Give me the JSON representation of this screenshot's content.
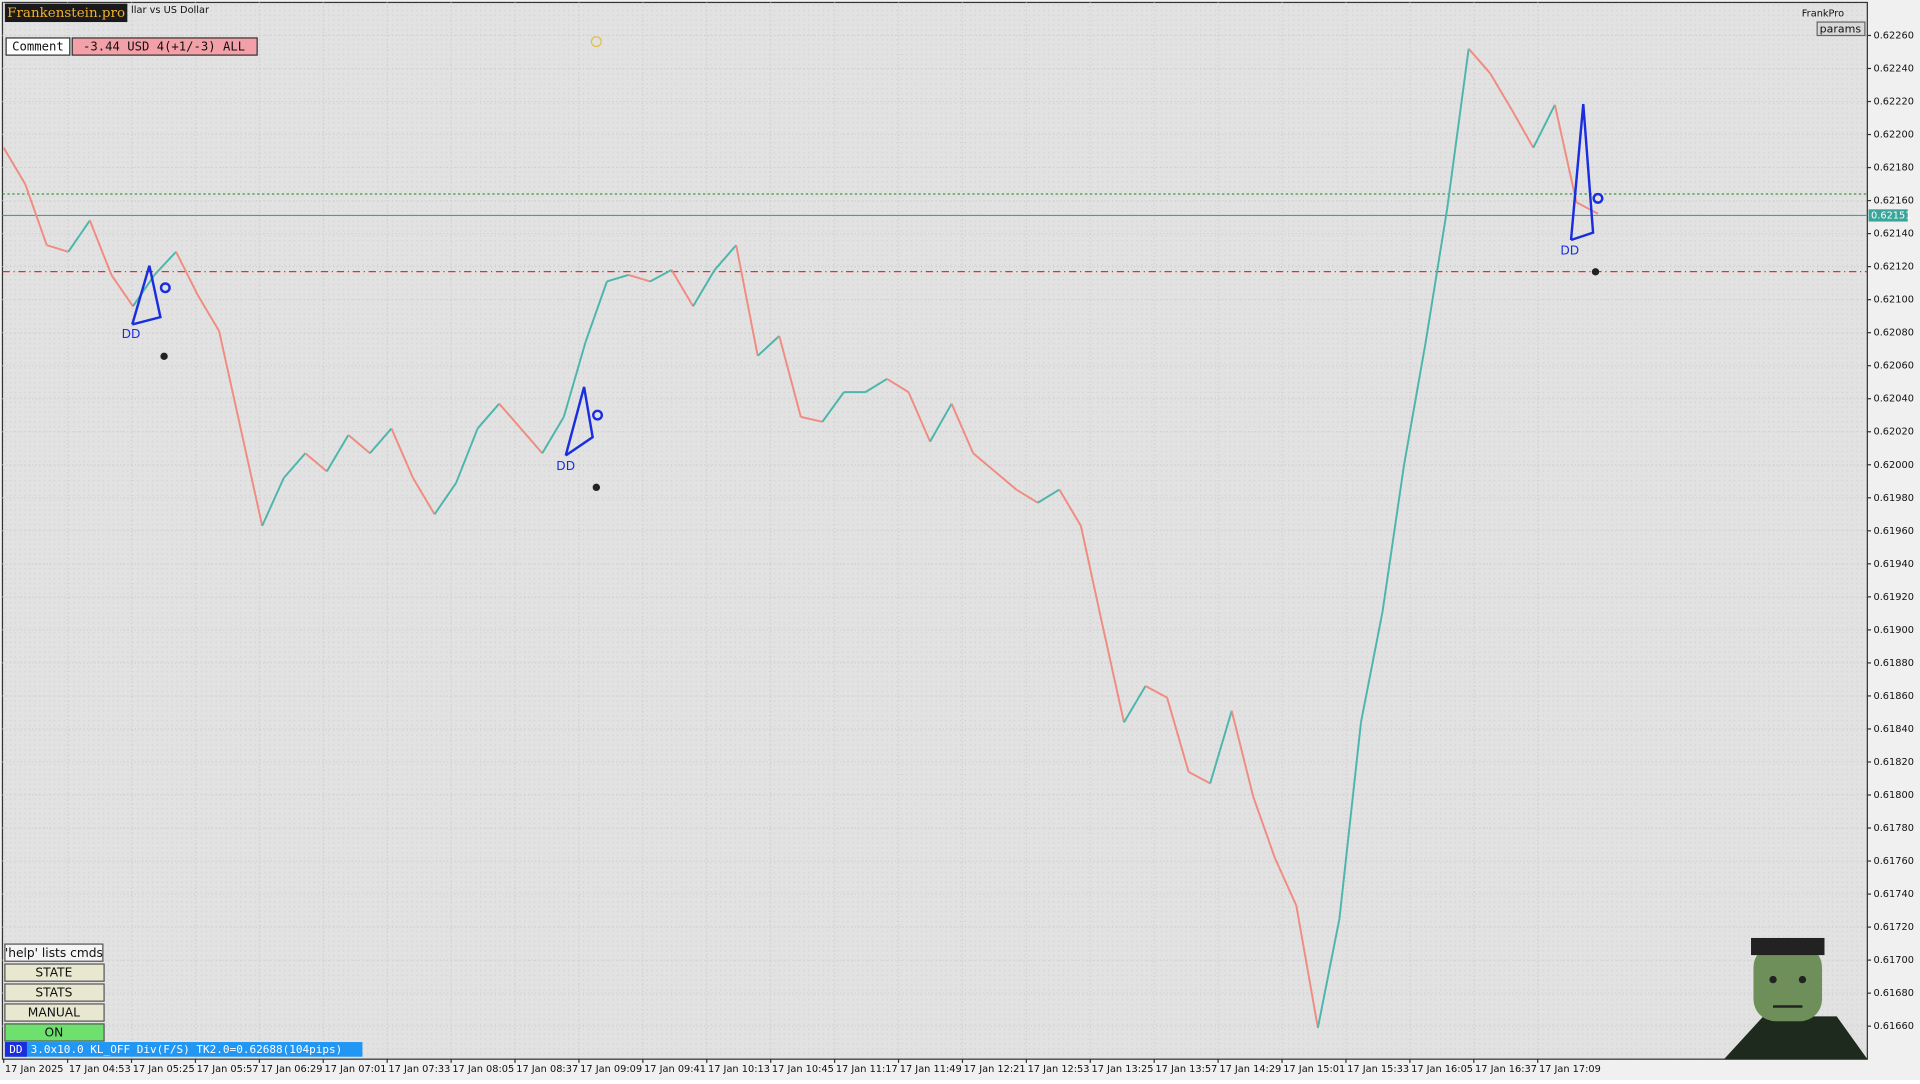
{
  "header": {
    "brand": "Frankenstein.pro",
    "symbol": "llar vs US Dollar",
    "comment_label": "Comment",
    "comment_value": "-3.44 USD 4(+1/-3) ALL",
    "account": "FrankPro",
    "params": "params"
  },
  "chart_data": {
    "type": "line",
    "up_color": "#4db6ac",
    "down_color": "#f08c80",
    "grid": true,
    "values": [
      0.62192,
      0.6217,
      0.62133,
      0.62129,
      0.62148,
      0.62115,
      0.62096,
      0.62115,
      0.62129,
      0.62103,
      0.62081,
      0.62022,
      0.61963,
      0.61992,
      0.62007,
      0.61996,
      0.62018,
      0.62007,
      0.62022,
      0.61992,
      0.6197,
      0.61989,
      0.62022,
      0.62037,
      0.62022,
      0.62007,
      0.62029,
      0.62074,
      0.62111,
      0.62115,
      0.62111,
      0.62118,
      0.62096,
      0.62118,
      0.62133,
      0.62066,
      0.62078,
      0.62029,
      0.62026,
      0.62044,
      0.62044,
      0.62052,
      0.62044,
      0.62014,
      0.62037,
      0.62007,
      0.61996,
      0.61985,
      0.61977,
      0.61985,
      0.61963,
      0.61903,
      0.61844,
      0.61866,
      0.61859,
      0.61814,
      0.61807,
      0.61851,
      0.61799,
      0.61762,
      0.61733,
      0.61659,
      0.61725,
      0.61844,
      0.61911,
      0.62,
      0.62074,
      0.62155,
      0.62252,
      0.62237,
      0.62215,
      0.62192,
      0.62218,
      0.62159,
      0.62152
    ],
    "ylim": [
      0.6164,
      0.6228
    ],
    "yticks": [
      {
        "value": 0.6226,
        "label": "0.62260"
      },
      {
        "value": 0.6224,
        "label": "0.62240"
      },
      {
        "value": 0.6222,
        "label": "0.62220"
      },
      {
        "value": 0.622,
        "label": "0.62200"
      },
      {
        "value": 0.6218,
        "label": "0.62180"
      },
      {
        "value": 0.6216,
        "label": "0.62160"
      },
      {
        "value": 0.6214,
        "label": "0.62140"
      },
      {
        "value": 0.6212,
        "label": "0.62120"
      },
      {
        "value": 0.621,
        "label": "0.62100"
      },
      {
        "value": 0.6208,
        "label": "0.62080"
      },
      {
        "value": 0.6206,
        "label": "0.62060"
      },
      {
        "value": 0.6204,
        "label": "0.62040"
      },
      {
        "value": 0.6202,
        "label": "0.62020"
      },
      {
        "value": 0.62,
        "label": "0.62000"
      },
      {
        "value": 0.6198,
        "label": "0.61980"
      },
      {
        "value": 0.6196,
        "label": "0.61960"
      },
      {
        "value": 0.6194,
        "label": "0.61940"
      },
      {
        "value": 0.6192,
        "label": "0.61920"
      },
      {
        "value": 0.619,
        "label": "0.61900"
      },
      {
        "value": 0.6188,
        "label": "0.61880"
      },
      {
        "value": 0.6186,
        "label": "0.61860"
      },
      {
        "value": 0.6184,
        "label": "0.61840"
      },
      {
        "value": 0.6182,
        "label": "0.61820"
      },
      {
        "value": 0.618,
        "label": "0.61800"
      },
      {
        "value": 0.6178,
        "label": "0.61780"
      },
      {
        "value": 0.6176,
        "label": "0.61760"
      },
      {
        "value": 0.6174,
        "label": "0.61740"
      },
      {
        "value": 0.6172,
        "label": "0.61720"
      },
      {
        "value": 0.617,
        "label": "0.61700"
      },
      {
        "value": 0.6168,
        "label": "0.61680"
      },
      {
        "value": 0.6166,
        "label": "0.61660"
      }
    ],
    "time_labels": [
      "17 Jan 2025",
      "17 Jan 04:53",
      "17 Jan 05:25",
      "17 Jan 05:57",
      "17 Jan 06:29",
      "17 Jan 07:01",
      "17 Jan 07:33",
      "17 Jan 08:05",
      "17 Jan 08:37",
      "17 Jan 09:09",
      "17 Jan 09:41",
      "17 Jan 10:13",
      "17 Jan 10:45",
      "17 Jan 11:17",
      "17 Jan 11:49",
      "17 Jan 12:21",
      "17 Jan 12:53",
      "17 Jan 13:25",
      "17 Jan 13:57",
      "17 Jan 14:29",
      "17 Jan 15:01",
      "17 Jan 15:33",
      "17 Jan 16:05",
      "17 Jan 16:37",
      "17 Jan 17:09"
    ],
    "levels": [
      {
        "value": 0.62164,
        "color": "#3a9a3a",
        "style": "dotted"
      },
      {
        "value": 0.62151,
        "color": "#3aa59a",
        "style": "solid"
      },
      {
        "value": 0.62117,
        "color": "#e03030",
        "style": "dashdot"
      }
    ]
  },
  "signals": [
    "DD",
    "DD",
    "DD"
  ],
  "buttons": [
    "'help' lists cmds",
    "STATE",
    "STATS",
    "MANUAL",
    "ON"
  ],
  "status": {
    "tag": "DD",
    "text": "3.0x10.0 KL_OFF Div(F/S) TK2.0=0.62688(104pips)"
  }
}
